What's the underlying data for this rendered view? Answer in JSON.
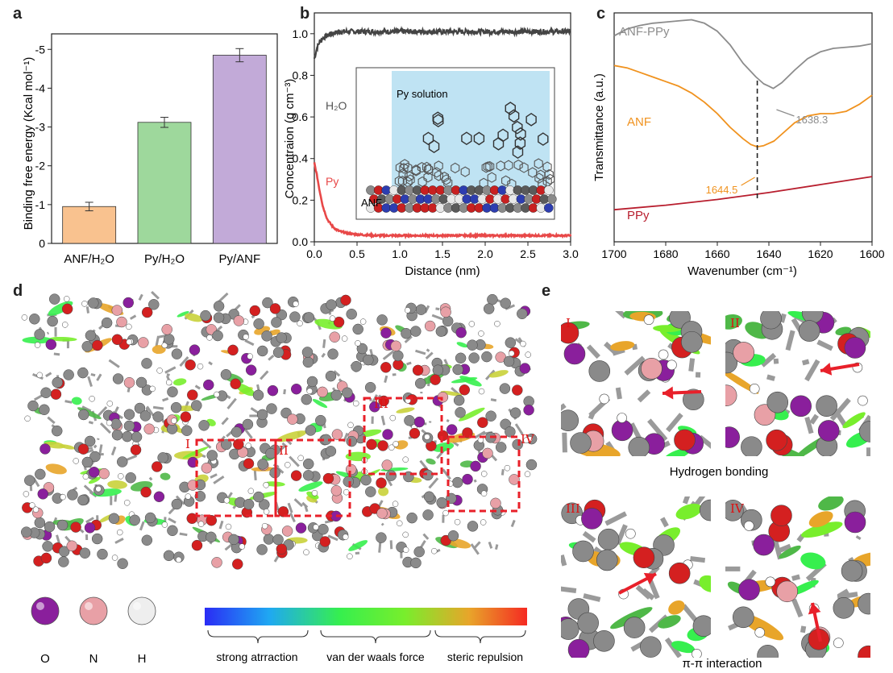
{
  "panels": {
    "a": "a",
    "b": "b",
    "c": "c",
    "d": "d",
    "e": "e"
  },
  "chart_data": [
    {
      "type": "bar",
      "panel": "a",
      "categories": [
        "ANF/H₂O",
        "Py/H₂O",
        "Py/ANF"
      ],
      "values": [
        -0.95,
        -3.12,
        -4.85
      ],
      "errors": [
        0.11,
        0.13,
        0.17
      ],
      "colors": [
        "#f9c28f",
        "#9ed89c",
        "#c2aad8"
      ],
      "ylabel": "Binding free energy (Kcal mol⁻¹)",
      "ylim": [
        0,
        -5.4
      ],
      "yticks": [
        "0",
        "-1",
        "-2",
        "-3",
        "-4",
        "-5"
      ],
      "ytick_values": [
        0,
        -1,
        -2,
        -3,
        -4,
        -5
      ]
    },
    {
      "type": "line",
      "panel": "b",
      "xlabel": "Distance (nm)",
      "ylabel": "Concentraion (g cm⁻³)",
      "xlim": [
        0,
        3.0
      ],
      "ylim": [
        0,
        1.1
      ],
      "xticks": [
        "0.0",
        "0.5",
        "1.0",
        "1.5",
        "2.0",
        "2.5",
        "3.0"
      ],
      "xtick_values": [
        0,
        0.5,
        1.0,
        1.5,
        2.0,
        2.5,
        3.0
      ],
      "yticks": [
        "0.0",
        "0.2",
        "0.4",
        "0.6",
        "0.8",
        "1.0"
      ],
      "ytick_values": [
        0,
        0.2,
        0.4,
        0.6,
        0.8,
        1.0
      ],
      "series": [
        {
          "name": "H₂O",
          "color": "#444444",
          "x": [
            0,
            0.03,
            0.06,
            0.1,
            0.15,
            0.2,
            0.3,
            0.5,
            1.0,
            1.5,
            2.0,
            2.5,
            3.0
          ],
          "y": [
            0.88,
            0.93,
            0.96,
            0.98,
            0.99,
            1.0,
            1.01,
            1.01,
            1.01,
            1.01,
            1.01,
            1.01,
            1.01
          ],
          "noise": 0.012
        },
        {
          "name": "Py",
          "color": "#e84848",
          "x": [
            0,
            0.03,
            0.06,
            0.1,
            0.15,
            0.2,
            0.25,
            0.3,
            0.4,
            0.5,
            0.7,
            1.0,
            1.5,
            2.0,
            2.5,
            3.0
          ],
          "y": [
            0.38,
            0.32,
            0.25,
            0.17,
            0.11,
            0.08,
            0.06,
            0.05,
            0.04,
            0.035,
            0.03,
            0.03,
            0.03,
            0.03,
            0.03,
            0.03
          ],
          "noise": 0.004
        }
      ],
      "inset": {
        "solution_label": "Py solution",
        "surface_label": "ANF"
      }
    },
    {
      "type": "line",
      "panel": "c",
      "xlabel": "Wavenumber (cm⁻¹)",
      "ylabel": "Transmittance (a.u.)",
      "xlim": [
        1700,
        1600
      ],
      "xticks": [
        "1700",
        "1680",
        "1660",
        "1640",
        "1620",
        "1600"
      ],
      "xtick_values": [
        1700,
        1680,
        1660,
        1640,
        1620,
        1600
      ],
      "ylim": [
        0,
        10
      ],
      "series": [
        {
          "name": "ANF-PPy",
          "color": "#8c8c8c",
          "x": [
            1700,
            1695,
            1690,
            1685,
            1680,
            1675,
            1670,
            1665,
            1660,
            1655,
            1650,
            1645,
            1642,
            1640,
            1638.3,
            1635,
            1630,
            1625,
            1620,
            1615,
            1610,
            1605,
            1600
          ],
          "y": [
            9.0,
            9.3,
            9.45,
            9.55,
            9.6,
            9.65,
            9.7,
            9.55,
            9.2,
            8.6,
            7.8,
            7.2,
            6.9,
            6.8,
            6.7,
            6.95,
            7.5,
            8.0,
            8.3,
            8.45,
            8.5,
            8.55,
            8.65
          ]
        },
        {
          "name": "ANF",
          "color": "#f0921e",
          "x": [
            1700,
            1695,
            1690,
            1685,
            1680,
            1675,
            1670,
            1665,
            1660,
            1655,
            1650,
            1647,
            1644.5,
            1642,
            1638,
            1635,
            1630,
            1625,
            1620,
            1615,
            1610,
            1605,
            1600
          ],
          "y": [
            7.7,
            7.6,
            7.4,
            7.2,
            7.0,
            6.8,
            6.5,
            6.1,
            5.6,
            5.0,
            4.5,
            4.25,
            4.15,
            4.2,
            4.4,
            4.7,
            5.2,
            5.5,
            5.6,
            5.6,
            5.7,
            6.0,
            6.4
          ]
        },
        {
          "name": "PPy",
          "color": "#b81e2e",
          "x": [
            1700,
            1680,
            1660,
            1640,
            1620,
            1600
          ],
          "y": [
            1.4,
            1.6,
            1.85,
            2.15,
            2.5,
            2.85
          ]
        }
      ],
      "annotations": [
        {
          "text": "1638.3",
          "x": 1638.3,
          "color": "#8c8c8c"
        },
        {
          "text": "1644.5",
          "x": 1644.5,
          "color": "#f0921e"
        }
      ]
    }
  ],
  "panel_d": {
    "region_labels": [
      "I",
      "II",
      "III",
      "IV"
    ],
    "legend_atoms": [
      {
        "label": "O",
        "color": "#8a1f9c"
      },
      {
        "label": "N",
        "color": "#e8a0a6"
      },
      {
        "label": "H",
        "color": "#eeeeee"
      }
    ],
    "colorbar_labels": [
      "strong atrraction",
      "van der waals force",
      "steric repulsion"
    ]
  },
  "panel_e": {
    "sub_labels": [
      "I",
      "II",
      "III",
      "IV"
    ],
    "caption_top": "Hydrogen bonding",
    "caption_bottom": "π-π interaction"
  }
}
